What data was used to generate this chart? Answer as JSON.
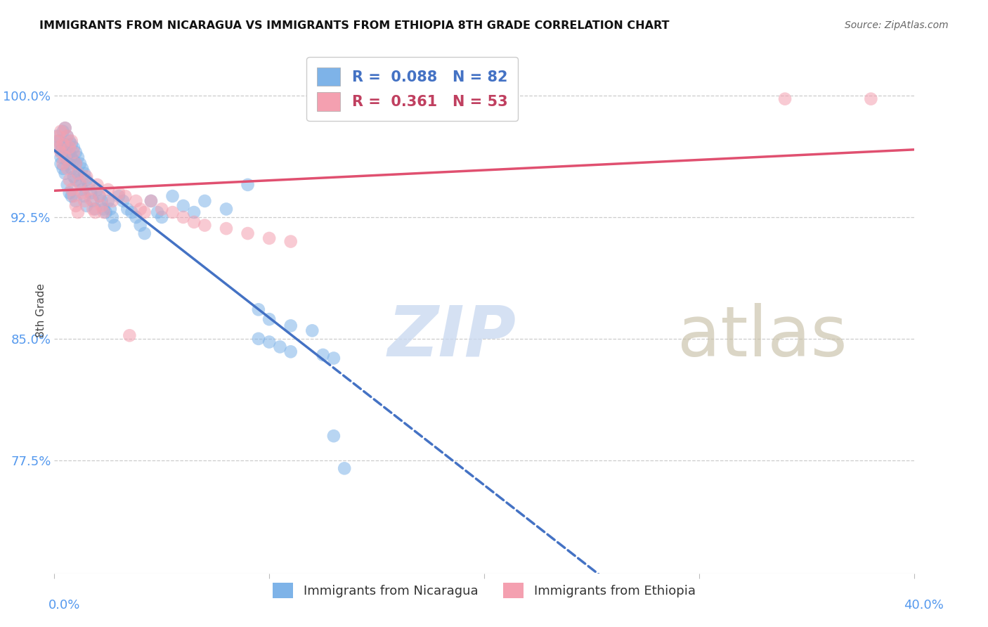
{
  "title": "IMMIGRANTS FROM NICARAGUA VS IMMIGRANTS FROM ETHIOPIA 8TH GRADE CORRELATION CHART",
  "source": "Source: ZipAtlas.com",
  "ylabel": "8th Grade",
  "xmin": 0.0,
  "xmax": 0.4,
  "ymin": 0.705,
  "ymax": 1.03,
  "yticks": [
    0.775,
    0.85,
    0.925,
    1.0
  ],
  "ytick_labels": [
    "77.5%",
    "85.0%",
    "92.5%",
    "100.0%"
  ],
  "r_nicaragua": 0.088,
  "n_nicaragua": 82,
  "r_ethiopia": 0.361,
  "n_ethiopia": 53,
  "color_nicaragua": "#7EB3E8",
  "color_ethiopia": "#F4A0B0",
  "trendline_nicaragua": "#4472C4",
  "trendline_ethiopia": "#E05070",
  "watermark_color_zip": "#C8D8F0",
  "watermark_color_atlas": "#C8C0A8",
  "bg_color": "#FFFFFF",
  "grid_color": "#CCCCCC",
  "title_color": "#111111",
  "source_color": "#666666",
  "axis_tick_color": "#5599EE",
  "ylabel_color": "#444444",
  "nic_x": [
    0.001,
    0.002,
    0.002,
    0.003,
    0.003,
    0.003,
    0.004,
    0.004,
    0.005,
    0.005,
    0.005,
    0.005,
    0.006,
    0.006,
    0.006,
    0.006,
    0.007,
    0.007,
    0.007,
    0.007,
    0.008,
    0.008,
    0.008,
    0.008,
    0.009,
    0.009,
    0.009,
    0.01,
    0.01,
    0.01,
    0.01,
    0.011,
    0.011,
    0.012,
    0.012,
    0.013,
    0.013,
    0.014,
    0.014,
    0.015,
    0.015,
    0.016,
    0.017,
    0.018,
    0.019,
    0.02,
    0.021,
    0.022,
    0.023,
    0.024,
    0.025,
    0.026,
    0.027,
    0.028,
    0.03,
    0.032,
    0.034,
    0.036,
    0.038,
    0.04,
    0.042,
    0.045,
    0.048,
    0.05,
    0.055,
    0.06,
    0.065,
    0.07,
    0.08,
    0.09,
    0.095,
    0.1,
    0.11,
    0.12,
    0.095,
    0.1,
    0.105,
    0.11,
    0.125,
    0.13,
    0.13,
    0.135
  ],
  "nic_y": [
    0.975,
    0.972,
    0.968,
    0.966,
    0.962,
    0.958,
    0.978,
    0.955,
    0.98,
    0.97,
    0.965,
    0.952,
    0.975,
    0.968,
    0.96,
    0.945,
    0.972,
    0.965,
    0.958,
    0.94,
    0.97,
    0.962,
    0.955,
    0.938,
    0.968,
    0.96,
    0.95,
    0.965,
    0.958,
    0.948,
    0.935,
    0.962,
    0.952,
    0.958,
    0.945,
    0.955,
    0.942,
    0.952,
    0.938,
    0.948,
    0.932,
    0.945,
    0.94,
    0.935,
    0.93,
    0.942,
    0.938,
    0.935,
    0.93,
    0.928,
    0.935,
    0.93,
    0.925,
    0.92,
    0.938,
    0.935,
    0.93,
    0.928,
    0.925,
    0.92,
    0.915,
    0.935,
    0.928,
    0.925,
    0.938,
    0.932,
    0.928,
    0.935,
    0.93,
    0.945,
    0.868,
    0.862,
    0.858,
    0.855,
    0.85,
    0.848,
    0.845,
    0.842,
    0.84,
    0.838,
    0.79,
    0.77
  ],
  "eth_x": [
    0.001,
    0.002,
    0.002,
    0.003,
    0.003,
    0.004,
    0.004,
    0.005,
    0.005,
    0.006,
    0.006,
    0.007,
    0.007,
    0.008,
    0.008,
    0.009,
    0.009,
    0.01,
    0.01,
    0.011,
    0.011,
    0.012,
    0.013,
    0.014,
    0.015,
    0.016,
    0.017,
    0.018,
    0.019,
    0.02,
    0.021,
    0.022,
    0.023,
    0.025,
    0.027,
    0.03,
    0.033,
    0.035,
    0.038,
    0.04,
    0.042,
    0.045,
    0.05,
    0.055,
    0.06,
    0.065,
    0.07,
    0.08,
    0.09,
    0.1,
    0.11,
    0.34,
    0.38
  ],
  "eth_y": [
    0.972,
    0.975,
    0.968,
    0.978,
    0.965,
    0.97,
    0.958,
    0.98,
    0.962,
    0.975,
    0.955,
    0.968,
    0.948,
    0.972,
    0.942,
    0.965,
    0.938,
    0.958,
    0.932,
    0.952,
    0.928,
    0.946,
    0.94,
    0.935,
    0.95,
    0.942,
    0.936,
    0.93,
    0.928,
    0.945,
    0.938,
    0.932,
    0.928,
    0.942,
    0.935,
    0.94,
    0.938,
    0.852,
    0.935,
    0.93,
    0.928,
    0.935,
    0.93,
    0.928,
    0.925,
    0.922,
    0.92,
    0.918,
    0.915,
    0.912,
    0.91,
    0.998,
    0.998
  ]
}
